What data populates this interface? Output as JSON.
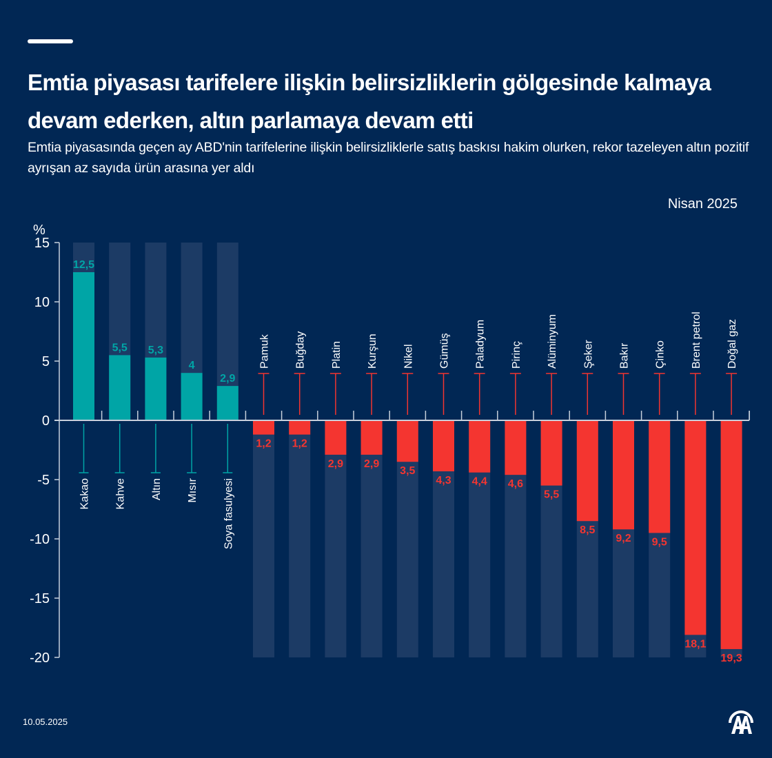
{
  "header": {
    "title": "Emtia piyasası tarifelere ilişkin belirsizliklerin gölgesinde kalmaya devam ederken, altın parlamaya devam etti",
    "subtitle": "Emtia piyasasında geçen ay ABD'nin tarifelerine ilişkin belirsizliklerle satış baskısı hakim olurken, rekor tazeleyen altın pozitif ayrışan az sayıda ürün arasına yer aldı",
    "period": "Nisan 2025"
  },
  "footer": {
    "date": "10.05.2025",
    "logo": "AA"
  },
  "colors": {
    "background": "#012754",
    "positive": "#00a5a6",
    "negative": "#f43530",
    "track": "#1c3b65",
    "axis": "#c8d0dc"
  },
  "chart_data": {
    "type": "bar",
    "title": "Emtia piyasası tarifelere ilişkin belirsizliklerin gölgesinde kalmaya devam ederken, altın parlamaya devam etti",
    "ylabel": "%",
    "xlabel": "",
    "ylim": [
      -20,
      15
    ],
    "yticks": [
      15,
      10,
      5,
      0,
      -5,
      -10,
      -15,
      -20
    ],
    "ytick_labels": [
      "15",
      "10",
      "5",
      "0",
      "-5",
      "-10",
      "-15",
      "-20"
    ],
    "categories": [
      "Kakao",
      "Kahve",
      "Altın",
      "Mısır",
      "Soya fasulyesi",
      "Pamuk",
      "Buğday",
      "Platin",
      "Kurşun",
      "Nikel",
      "Gümüş",
      "Paladyum",
      "Pirinç",
      "Alüminyum",
      "Şeker",
      "Bakır",
      "Çinko",
      "Brent petrol",
      "Doğal gaz"
    ],
    "values": [
      12.5,
      5.5,
      5.3,
      4,
      2.9,
      -1.2,
      -1.2,
      -2.9,
      -2.9,
      -3.5,
      -4.3,
      -4.4,
      -4.6,
      -5.5,
      -8.5,
      -9.2,
      -9.5,
      -18.1,
      -19.3
    ],
    "value_labels": [
      "12,5",
      "5,5",
      "5,3",
      "4",
      "2,9",
      "1,2",
      "1,2",
      "2,9",
      "2,9",
      "3,5",
      "4,3",
      "4,4",
      "4,6",
      "5,5",
      "8,5",
      "9,2",
      "9,5",
      "18,1",
      "19,3"
    ],
    "grid": false,
    "legend": "none"
  }
}
